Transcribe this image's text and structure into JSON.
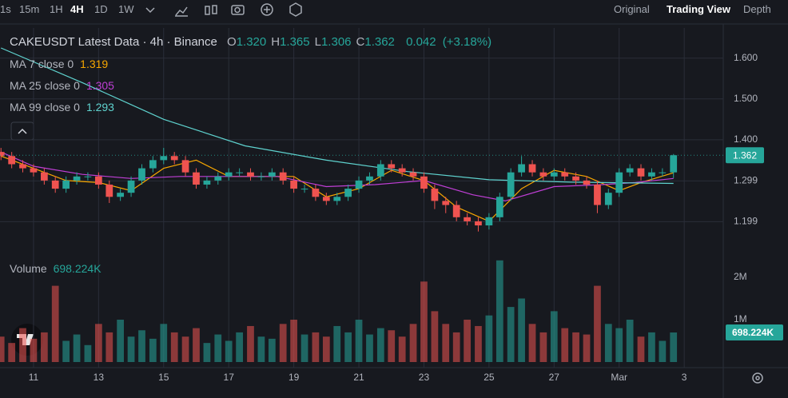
{
  "toolbar": {
    "intervals": [
      "1s",
      "15m",
      "1H",
      "4H",
      "1D",
      "1W"
    ],
    "views": [
      "Original",
      "Trading View",
      "Depth"
    ]
  },
  "chart_data": {
    "type": "candlestick",
    "title": "CAKEUSDT Latest Data · 4h · Binance",
    "ohlc_labels": [
      "O",
      "H",
      "L",
      "C"
    ],
    "ohlc_value_labels": [
      "1.320",
      "1.365",
      "1.306",
      "1.362"
    ],
    "change": 0.042,
    "change_pct": "(+3.18%)",
    "up_color": "#26a69a",
    "down_color": "#ef5350",
    "x": [
      10,
      10.33,
      10.67,
      11,
      11.33,
      11.67,
      12,
      12.33,
      12.67,
      13,
      13.33,
      13.67,
      14,
      14.33,
      14.67,
      15,
      15.33,
      15.67,
      16,
      16.33,
      16.67,
      17,
      17.33,
      17.67,
      18,
      18.33,
      18.67,
      19,
      19.33,
      19.67,
      20,
      20.33,
      20.67,
      21,
      21.33,
      21.67,
      22,
      22.33,
      22.67,
      23,
      23.33,
      23.67,
      24,
      24.33,
      24.67,
      25,
      25.33,
      25.67,
      26,
      26.33,
      26.67,
      27,
      27.33,
      27.67,
      28,
      28.33,
      28.67,
      29,
      29.33,
      29.67,
      30,
      30.33,
      30.67
    ],
    "open": [
      1.37,
      1.36,
      1.34,
      1.33,
      1.32,
      1.3,
      1.28,
      1.3,
      1.31,
      1.31,
      1.29,
      1.26,
      1.27,
      1.3,
      1.33,
      1.35,
      1.36,
      1.35,
      1.32,
      1.29,
      1.3,
      1.31,
      1.32,
      1.32,
      1.31,
      1.31,
      1.32,
      1.3,
      1.28,
      1.28,
      1.26,
      1.25,
      1.26,
      1.28,
      1.3,
      1.31,
      1.34,
      1.33,
      1.32,
      1.31,
      1.28,
      1.25,
      1.24,
      1.21,
      1.2,
      1.19,
      1.21,
      1.26,
      1.32,
      1.34,
      1.32,
      1.31,
      1.32,
      1.31,
      1.3,
      1.29,
      1.24,
      1.27,
      1.32,
      1.33,
      1.31,
      1.32,
      1.32
    ],
    "high": [
      1.38,
      1.37,
      1.35,
      1.34,
      1.33,
      1.31,
      1.31,
      1.32,
      1.32,
      1.32,
      1.3,
      1.28,
      1.31,
      1.34,
      1.36,
      1.38,
      1.37,
      1.36,
      1.33,
      1.31,
      1.32,
      1.33,
      1.33,
      1.33,
      1.32,
      1.33,
      1.33,
      1.31,
      1.29,
      1.29,
      1.27,
      1.27,
      1.29,
      1.31,
      1.32,
      1.35,
      1.35,
      1.34,
      1.33,
      1.32,
      1.29,
      1.26,
      1.25,
      1.22,
      1.21,
      1.22,
      1.27,
      1.33,
      1.36,
      1.35,
      1.33,
      1.33,
      1.33,
      1.32,
      1.31,
      1.3,
      1.28,
      1.33,
      1.34,
      1.34,
      1.33,
      1.33,
      1.365
    ],
    "low": [
      1.35,
      1.33,
      1.32,
      1.31,
      1.29,
      1.27,
      1.27,
      1.29,
      1.3,
      1.28,
      1.245,
      1.25,
      1.26,
      1.29,
      1.32,
      1.34,
      1.34,
      1.31,
      1.28,
      1.28,
      1.29,
      1.3,
      1.31,
      1.3,
      1.3,
      1.3,
      1.29,
      1.27,
      1.27,
      1.25,
      1.24,
      1.24,
      1.25,
      1.27,
      1.29,
      1.3,
      1.32,
      1.31,
      1.3,
      1.27,
      1.23,
      1.22,
      1.2,
      1.19,
      1.175,
      1.18,
      1.2,
      1.25,
      1.31,
      1.31,
      1.3,
      1.3,
      1.3,
      1.29,
      1.28,
      1.22,
      1.23,
      1.26,
      1.31,
      1.3,
      1.3,
      1.31,
      1.306
    ],
    "close": [
      1.36,
      1.34,
      1.33,
      1.32,
      1.3,
      1.28,
      1.3,
      1.31,
      1.31,
      1.29,
      1.26,
      1.27,
      1.3,
      1.33,
      1.35,
      1.36,
      1.35,
      1.32,
      1.29,
      1.3,
      1.31,
      1.32,
      1.32,
      1.31,
      1.31,
      1.32,
      1.3,
      1.28,
      1.28,
      1.26,
      1.25,
      1.26,
      1.28,
      1.3,
      1.31,
      1.34,
      1.33,
      1.32,
      1.31,
      1.28,
      1.25,
      1.24,
      1.21,
      1.2,
      1.19,
      1.21,
      1.26,
      1.32,
      1.34,
      1.32,
      1.31,
      1.32,
      1.31,
      1.3,
      1.29,
      1.24,
      1.27,
      1.32,
      1.33,
      1.31,
      1.32,
      1.32,
      1.362
    ],
    "volume": [
      600000,
      450000,
      800000,
      550000,
      700000,
      1800000,
      500000,
      650000,
      400000,
      900000,
      700000,
      1000000,
      600000,
      750000,
      550000,
      900000,
      700000,
      600000,
      800000,
      450000,
      650000,
      500000,
      700000,
      850000,
      600000,
      550000,
      900000,
      1000000,
      650000,
      700000,
      600000,
      850000,
      700000,
      1000000,
      650000,
      800000,
      750000,
      600000,
      900000,
      1900000,
      1200000,
      900000,
      700000,
      1000000,
      850000,
      1100000,
      2400000,
      1300000,
      1500000,
      900000,
      700000,
      1200000,
      800000,
      700000,
      650000,
      1800000,
      900000,
      800000,
      1000000,
      600000,
      700000,
      500000,
      698224
    ],
    "volume_title": "Volume",
    "volume_value_label": "698.224K",
    "moving_averages": [
      {
        "name": "MA 7 close 0",
        "color": "#f7a600",
        "value_label": "1.319",
        "x": [
          10,
          11,
          12,
          13,
          14,
          15,
          16,
          17,
          18,
          19,
          20,
          21,
          22,
          23,
          24,
          25,
          26,
          27,
          28,
          29,
          29.67,
          30.67
        ],
        "values": [
          1.36,
          1.33,
          1.3,
          1.295,
          1.275,
          1.33,
          1.35,
          1.31,
          1.31,
          1.31,
          1.26,
          1.28,
          1.325,
          1.3,
          1.235,
          1.2,
          1.28,
          1.325,
          1.31,
          1.275,
          1.295,
          1.319
        ]
      },
      {
        "name": "MA 25 close 0",
        "color": "#c03fd6",
        "value_label": "1.305",
        "x": [
          10,
          11,
          12.5,
          14,
          15.5,
          17,
          18.5,
          20,
          21.5,
          23,
          24.5,
          25.5,
          27,
          28.5,
          29.5,
          30.67
        ],
        "values": [
          1.37,
          1.335,
          1.315,
          1.305,
          1.31,
          1.31,
          1.31,
          1.285,
          1.29,
          1.3,
          1.265,
          1.25,
          1.285,
          1.29,
          1.295,
          1.305
        ]
      },
      {
        "name": "MA 99 close 0",
        "color": "#5fd3cf",
        "value_label": "1.293",
        "x": [
          10,
          12.5,
          15,
          17.5,
          20,
          22.5,
          25,
          27.5,
          30.67
        ],
        "values": [
          1.625,
          1.54,
          1.45,
          1.385,
          1.35,
          1.322,
          1.302,
          1.296,
          1.293
        ]
      }
    ],
    "xlim": [
      9.97,
      32.2
    ],
    "xticks": [
      11,
      13,
      15,
      17,
      19,
      21,
      23,
      25,
      27,
      {
        "value": 29,
        "label": "Mar"
      },
      {
        "value": 31,
        "label": "3"
      }
    ],
    "ylim": [
      0.855,
      1.674
    ],
    "yticks": [
      {
        "value": 1.199,
        "label": "1.199"
      },
      {
        "value": 1.299,
        "label": "1.299"
      },
      {
        "value": 1.4,
        "label": "1.400"
      },
      {
        "value": 1.5,
        "label": "1.500"
      },
      {
        "value": 1.6,
        "label": "1.600"
      }
    ],
    "y2lim": [
      0,
      4000000
    ],
    "y2ticks": [
      {
        "value": 1000000,
        "label": "1M"
      },
      {
        "value": 2000000,
        "label": "2M"
      }
    ],
    "grid": true
  }
}
